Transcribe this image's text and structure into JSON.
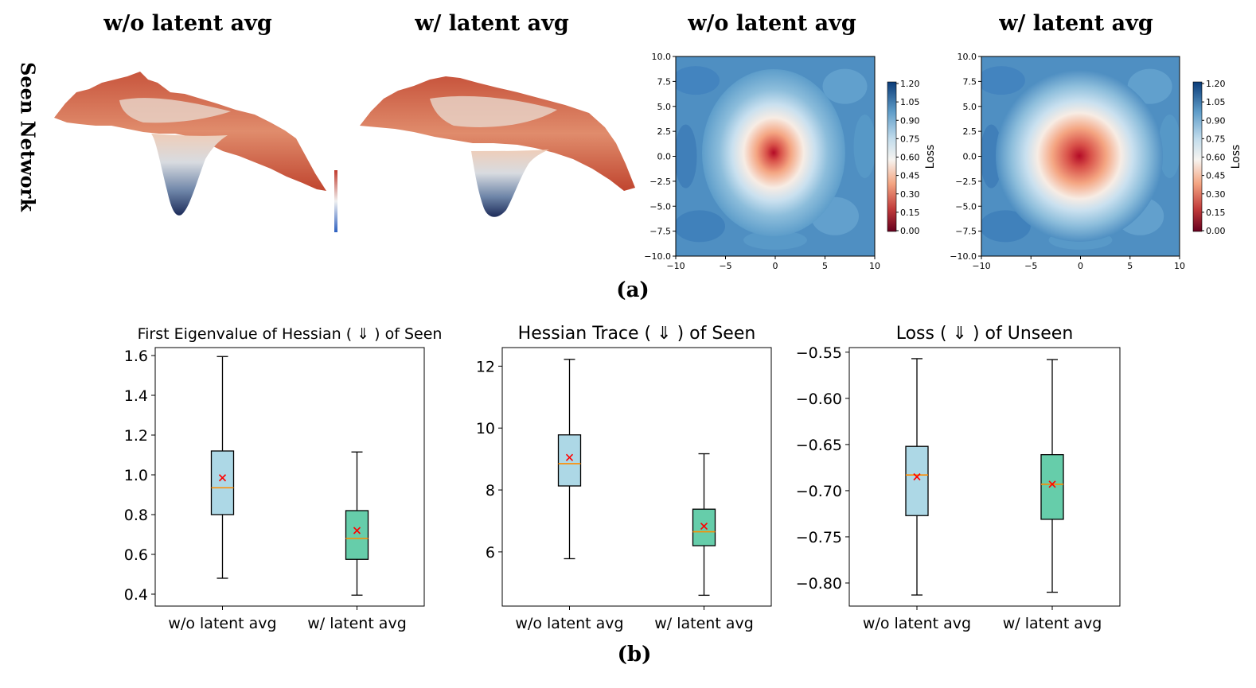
{
  "figure": {
    "panel_a_titles": [
      "w/o latent avg",
      "w/ latent avg",
      "w/o latent avg",
      "w/ latent avg"
    ],
    "row_label": "Seen Network",
    "caption_a": "(a)",
    "caption_b": "(b)"
  },
  "colors": {
    "box_wo": "#add8e6",
    "box_w": "#66cdaa",
    "median": "#ff8c00",
    "mean_marker": "#ff0000",
    "colormap": "RdBu"
  },
  "chart_data": [
    {
      "type": "contour",
      "title": "w/o latent avg",
      "xlim": [
        -10,
        10
      ],
      "ylim": [
        -10,
        10
      ],
      "xticks": [
        "−10",
        "−5",
        "0",
        "5",
        "10"
      ],
      "yticks": [
        "10.0",
        "7.5",
        "5.0",
        "2.5",
        "0.0",
        "−2.5",
        "−5.0",
        "−7.5",
        "−10.0"
      ],
      "colorbar_label": "Loss",
      "colorbar_ticks": [
        "1.20",
        "1.05",
        "0.90",
        "0.75",
        "0.60",
        "0.45",
        "0.30",
        "0.15",
        "0.00"
      ],
      "minimum": [
        0,
        0
      ]
    },
    {
      "type": "contour",
      "title": "w/ latent avg",
      "xlim": [
        -10,
        10
      ],
      "ylim": [
        -10,
        10
      ],
      "xticks": [
        "−10",
        "−5",
        "0",
        "5",
        "10"
      ],
      "yticks": [
        "10.0",
        "7.5",
        "5.0",
        "2.5",
        "0.0",
        "−2.5",
        "−5.0",
        "−7.5",
        "−10.0"
      ],
      "colorbar_label": "Loss",
      "colorbar_ticks": [
        "1.20",
        "1.05",
        "0.90",
        "0.75",
        "0.60",
        "0.45",
        "0.30",
        "0.15",
        "0.00"
      ],
      "minimum": [
        0,
        0
      ]
    },
    {
      "type": "box",
      "title": "First Eigenvalue of Hessian ( ⇓ ) of Seen",
      "categories": [
        "w/o latent avg",
        "w/ latent avg"
      ],
      "ylim": [
        0.34,
        1.64
      ],
      "yticks": [
        0.4,
        0.6,
        0.8,
        1.0,
        1.2,
        1.4,
        1.6
      ],
      "ytick_labels": [
        "0.4",
        "0.6",
        "0.8",
        "1.0",
        "1.2",
        "1.4",
        "1.6"
      ],
      "boxes": [
        {
          "whisker_low": 0.48,
          "q1": 0.8,
          "median": 0.935,
          "q3": 1.12,
          "whisker_high": 1.595,
          "mean": 0.985
        },
        {
          "whisker_low": 0.395,
          "q1": 0.575,
          "median": 0.68,
          "q3": 0.82,
          "whisker_high": 1.115,
          "mean": 0.72
        }
      ]
    },
    {
      "type": "box",
      "title": "Hessian Trace ( ⇓ ) of Seen",
      "categories": [
        "w/o latent avg",
        "w/ latent avg"
      ],
      "ylim": [
        4.25,
        12.6
      ],
      "yticks": [
        6,
        8,
        10,
        12
      ],
      "ytick_labels": [
        "6",
        "8",
        "10",
        "12"
      ],
      "boxes": [
        {
          "whisker_low": 5.78,
          "q1": 8.13,
          "median": 8.85,
          "q3": 9.78,
          "whisker_high": 12.22,
          "mean": 9.05
        },
        {
          "whisker_low": 4.6,
          "q1": 6.2,
          "median": 6.65,
          "q3": 7.38,
          "whisker_high": 9.17,
          "mean": 6.83
        }
      ]
    },
    {
      "type": "box",
      "title": "Loss ( ⇓ ) of Unseen",
      "categories": [
        "w/o latent avg",
        "w/ latent avg"
      ],
      "ylim": [
        -0.825,
        -0.545
      ],
      "yticks": [
        -0.55,
        -0.6,
        -0.65,
        -0.7,
        -0.75,
        -0.8
      ],
      "ytick_labels": [
        "−0.55",
        "−0.60",
        "−0.65",
        "−0.70",
        "−0.75",
        "−0.80"
      ],
      "boxes": [
        {
          "whisker_low": -0.813,
          "q1": -0.727,
          "median": -0.683,
          "q3": -0.652,
          "whisker_high": -0.557,
          "mean": -0.685
        },
        {
          "whisker_low": -0.81,
          "q1": -0.731,
          "median": -0.693,
          "q3": -0.661,
          "whisker_high": -0.558,
          "mean": -0.693
        }
      ]
    }
  ]
}
